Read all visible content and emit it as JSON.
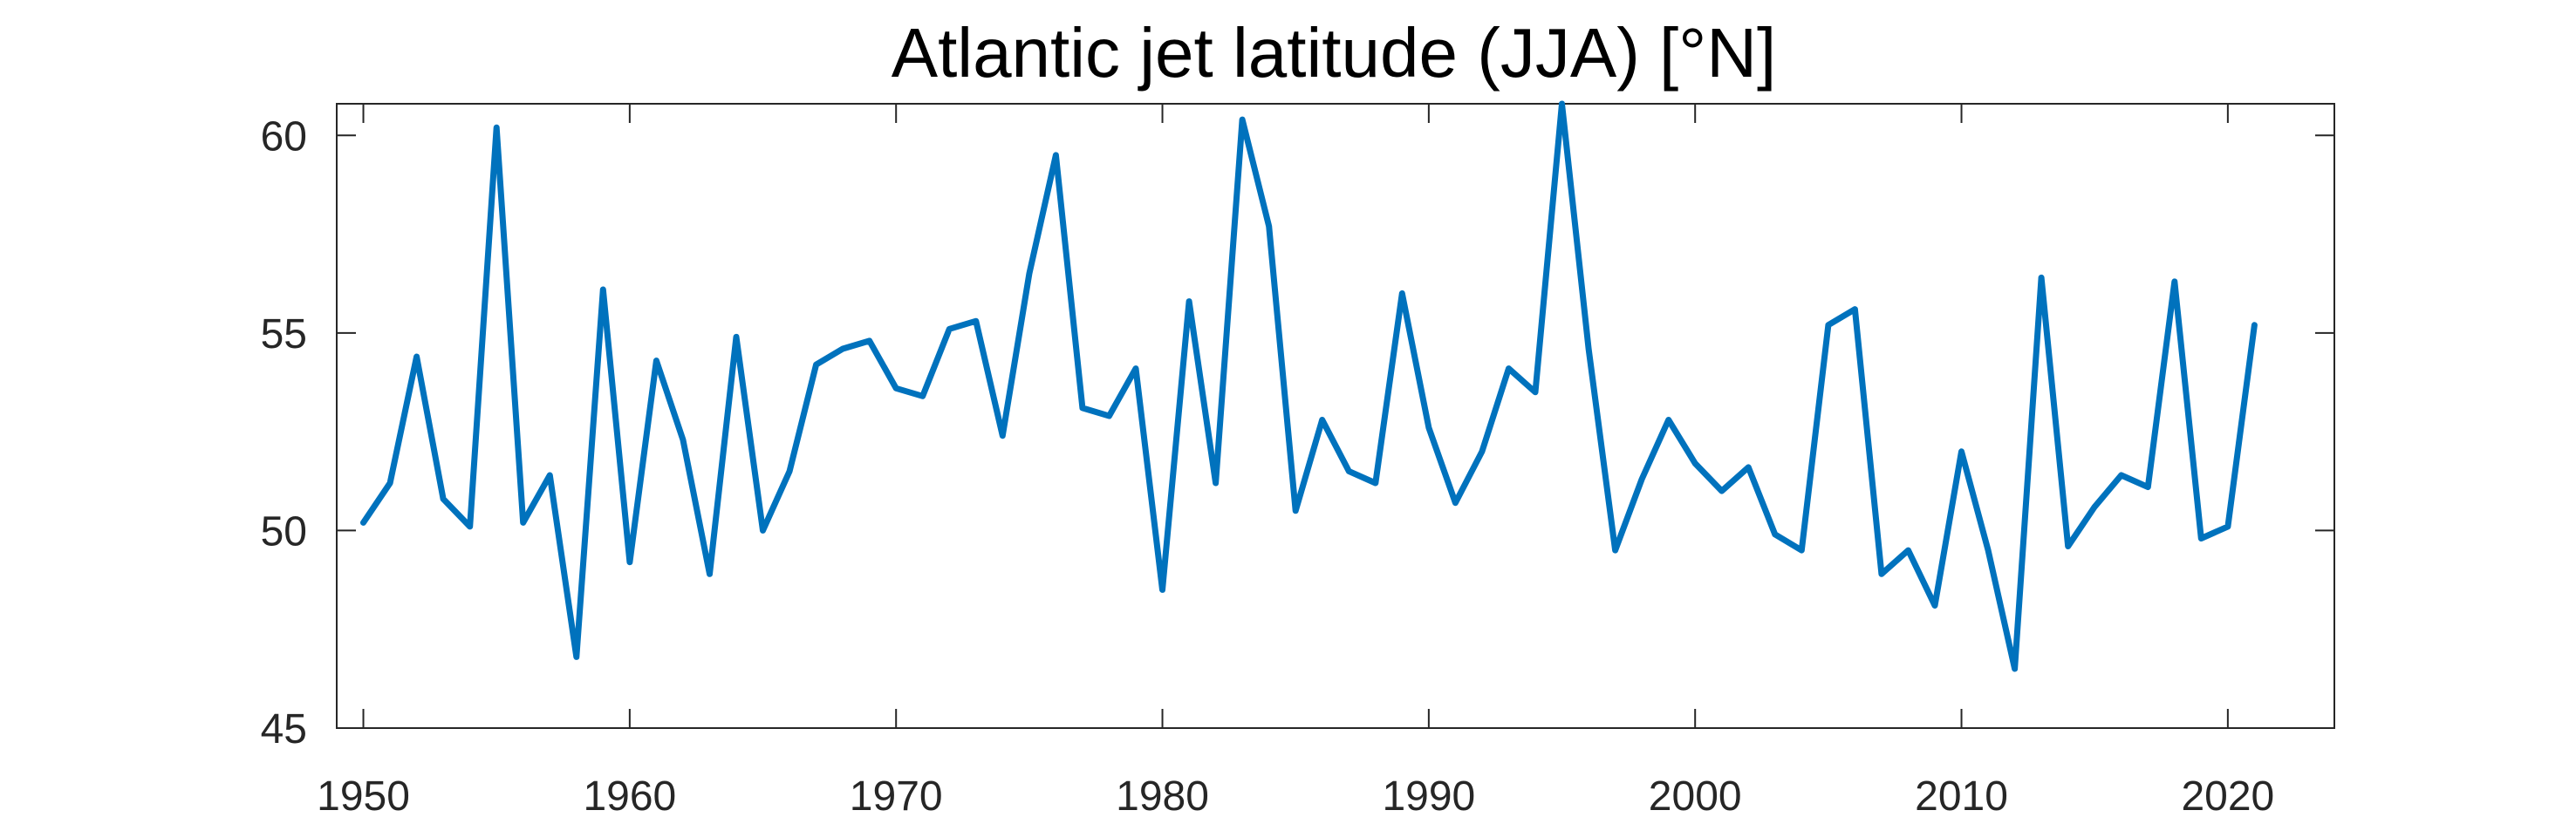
{
  "chart_data": {
    "type": "line",
    "title": "Atlantic jet latitude (JJA) [°N]",
    "xlabel": "",
    "ylabel": "",
    "xlim": [
      1949,
      2024
    ],
    "ylim": [
      45,
      60.8
    ],
    "xticks": [
      1950,
      1960,
      1970,
      1980,
      1990,
      2000,
      2010,
      2020
    ],
    "yticks": [
      45,
      50,
      55,
      60
    ],
    "grid": false,
    "series_color": "#0072bd",
    "series": [
      {
        "x": [
          1950,
          1951,
          1952,
          1953,
          1954,
          1955,
          1956,
          1957,
          1958,
          1959,
          1960,
          1961,
          1962,
          1963,
          1964,
          1965,
          1966,
          1967,
          1968,
          1969,
          1970,
          1971,
          1972,
          1973,
          1974,
          1975,
          1976,
          1977,
          1978,
          1979,
          1980,
          1981,
          1982,
          1983,
          1984,
          1985,
          1986,
          1987,
          1988,
          1989,
          1990,
          1991,
          1992,
          1993,
          1994,
          1995,
          1996,
          1997,
          1998,
          1999,
          2000,
          2001,
          2002,
          2003,
          2004,
          2005,
          2006,
          2007,
          2008,
          2009,
          2010,
          2011,
          2012,
          2013,
          2014,
          2015,
          2016,
          2017,
          2018,
          2019,
          2020,
          2021
        ],
        "values": [
          50.2,
          51.2,
          54.4,
          50.8,
          50.1,
          60.2,
          50.2,
          51.4,
          46.8,
          56.1,
          49.2,
          54.3,
          52.3,
          48.9,
          54.9,
          50.0,
          51.5,
          54.2,
          54.6,
          54.8,
          53.6,
          53.4,
          55.1,
          55.3,
          52.4,
          56.5,
          59.5,
          53.1,
          52.9,
          54.1,
          48.5,
          55.8,
          51.2,
          60.4,
          57.7,
          50.5,
          52.8,
          51.5,
          51.2,
          56.0,
          52.6,
          50.7,
          52.0,
          54.1,
          53.5,
          60.8,
          54.6,
          49.5,
          51.3,
          52.8,
          51.7,
          51.0,
          51.6,
          49.9,
          49.5,
          55.2,
          55.6,
          48.9,
          49.5,
          48.1,
          52.0,
          49.5,
          46.5,
          56.4,
          49.6,
          50.6,
          51.4,
          51.1,
          56.3,
          49.8,
          50.1,
          55.2
        ]
      }
    ]
  }
}
